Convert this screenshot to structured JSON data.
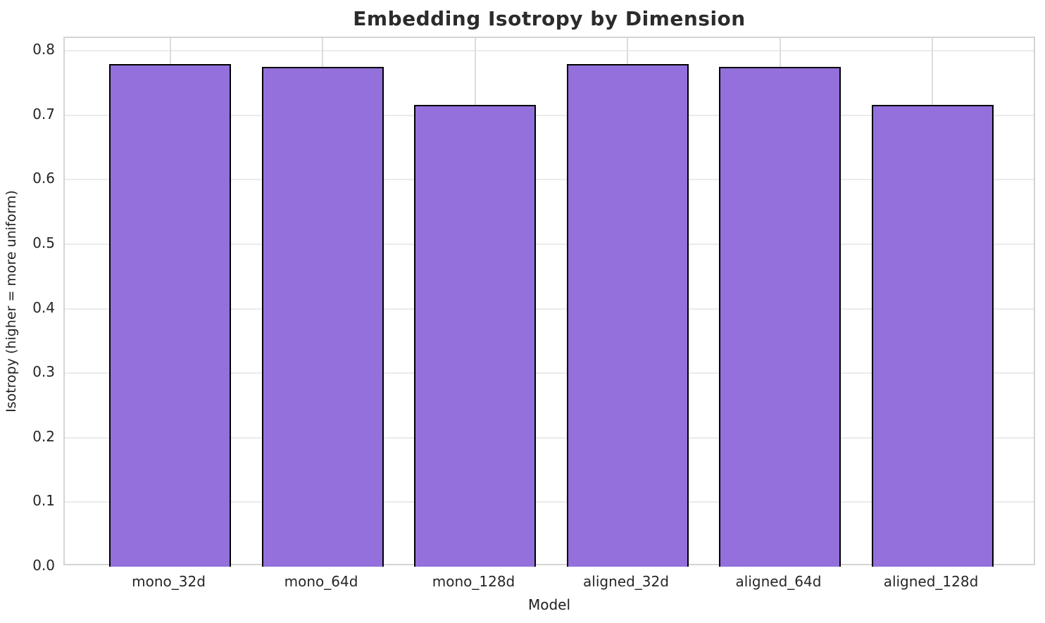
{
  "title": "Embedding Isotropy by Dimension",
  "chart_data": {
    "type": "bar",
    "title": "Embedding Isotropy by Dimension",
    "xlabel": "Model",
    "ylabel": "Isotropy (higher = more uniform)",
    "categories": [
      "mono_32d",
      "mono_64d",
      "mono_128d",
      "aligned_32d",
      "aligned_64d",
      "aligned_128d"
    ],
    "values": [
      0.78,
      0.775,
      0.716,
      0.78,
      0.775,
      0.716
    ],
    "ylim": [
      0,
      0.82
    ],
    "yticks": [
      0.0,
      0.1,
      0.2,
      0.3,
      0.4,
      0.5,
      0.6,
      0.7,
      0.8
    ],
    "grid": "on",
    "legend_position": "none",
    "bar_color": "#9370DB",
    "bar_edge_color": "#000000",
    "grid_color": "#ebebeb",
    "spine_color": "#d4d4d4",
    "tick_label_color": "#262626",
    "title_color": "#2b2b2b"
  }
}
